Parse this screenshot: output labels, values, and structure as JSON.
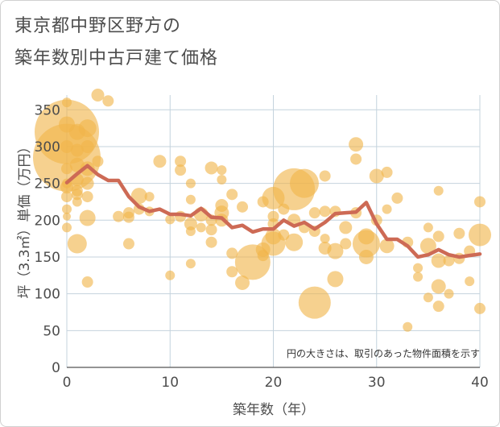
{
  "chart_data": {
    "type": "scatter",
    "title_line1": "東京都中野区野方の",
    "title_line2": "築年数別中古戸建て価格",
    "xlabel": "築年数（年）",
    "ylabel": "坪（3.3㎡）単価（万円）",
    "xlim": [
      0,
      40
    ],
    "ylim": [
      0,
      370
    ],
    "x_ticks": [
      0,
      10,
      20,
      30,
      40
    ],
    "y_ticks": [
      0,
      50,
      100,
      150,
      200,
      250,
      300,
      350
    ],
    "note": "円の大きさは、取引のあった物件面積を示す",
    "colors": {
      "bubble": "#f0b54a",
      "line": "#cd6a55",
      "grid": "#c4d3dd",
      "text": "#4d4d4d"
    },
    "bubbles": [
      [
        0,
        320,
        40
      ],
      [
        0,
        285,
        42
      ],
      [
        0,
        360,
        6
      ],
      [
        0,
        330,
        10
      ],
      [
        0,
        300,
        8
      ],
      [
        0,
        270,
        7
      ],
      [
        0,
        245,
        8
      ],
      [
        0,
        232,
        7
      ],
      [
        0,
        215,
        6
      ],
      [
        0,
        205,
        5
      ],
      [
        0,
        190,
        6
      ],
      [
        0,
        250,
        6
      ],
      [
        1,
        320,
        10
      ],
      [
        1,
        295,
        8
      ],
      [
        1,
        275,
        9
      ],
      [
        1,
        255,
        8
      ],
      [
        1,
        240,
        7
      ],
      [
        1,
        235,
        7
      ],
      [
        1,
        225,
        6
      ],
      [
        1,
        168,
        12
      ],
      [
        2,
        325,
        11
      ],
      [
        2,
        300,
        8
      ],
      [
        2,
        270,
        9
      ],
      [
        2,
        250,
        8
      ],
      [
        2,
        232,
        7
      ],
      [
        2,
        203,
        10
      ],
      [
        2,
        116,
        7
      ],
      [
        3,
        370,
        8
      ],
      [
        3,
        280,
        7
      ],
      [
        4,
        362,
        7
      ],
      [
        5,
        205,
        7
      ],
      [
        6,
        210,
        7
      ],
      [
        6,
        204,
        7
      ],
      [
        6,
        168,
        7
      ],
      [
        7,
        233,
        10
      ],
      [
        7,
        215,
        7
      ],
      [
        8,
        232,
        6
      ],
      [
        8,
        212,
        6
      ],
      [
        9,
        280,
        8
      ],
      [
        10,
        201,
        6
      ],
      [
        10,
        125,
        6
      ],
      [
        11,
        280,
        7
      ],
      [
        11,
        268,
        7
      ],
      [
        11,
        205,
        7
      ],
      [
        12,
        250,
        6
      ],
      [
        12,
        228,
        6
      ],
      [
        12,
        195,
        8
      ],
      [
        12,
        185,
        6
      ],
      [
        12,
        141,
        6
      ],
      [
        13,
        208,
        9
      ],
      [
        13,
        190,
        6
      ],
      [
        14,
        271,
        8
      ],
      [
        14,
        200,
        7
      ],
      [
        14,
        187,
        7
      ],
      [
        14,
        170,
        7
      ],
      [
        15,
        268,
        6
      ],
      [
        15,
        255,
        6
      ],
      [
        15,
        220,
        8
      ],
      [
        15,
        210,
        9
      ],
      [
        15,
        200,
        8
      ],
      [
        16,
        235,
        7
      ],
      [
        16,
        155,
        7
      ],
      [
        16,
        130,
        7
      ],
      [
        17,
        218,
        7
      ],
      [
        17,
        115,
        9
      ],
      [
        18,
        143,
        22
      ],
      [
        19,
        225,
        7
      ],
      [
        19,
        160,
        9
      ],
      [
        19,
        152,
        7
      ],
      [
        20,
        230,
        14
      ],
      [
        20,
        205,
        7
      ],
      [
        20,
        195,
        7
      ],
      [
        20,
        178,
        10
      ],
      [
        20,
        168,
        15
      ],
      [
        21,
        215,
        7
      ],
      [
        21,
        180,
        7
      ],
      [
        22,
        242,
        26
      ],
      [
        22,
        200,
        8
      ],
      [
        22,
        170,
        11
      ],
      [
        23,
        250,
        18
      ],
      [
        23,
        190,
        7
      ],
      [
        24,
        210,
        7
      ],
      [
        24,
        185,
        7
      ],
      [
        24,
        88,
        20
      ],
      [
        25,
        260,
        7
      ],
      [
        25,
        212,
        7
      ],
      [
        25,
        175,
        6
      ],
      [
        25,
        162,
        8
      ],
      [
        26,
        212,
        7
      ],
      [
        26,
        158,
        10
      ],
      [
        26,
        120,
        10
      ],
      [
        27,
        190,
        8
      ],
      [
        27,
        168,
        7
      ],
      [
        28,
        303,
        9
      ],
      [
        28,
        283,
        7
      ],
      [
        28,
        210,
        7
      ],
      [
        29,
        178,
        10
      ],
      [
        29,
        168,
        17
      ],
      [
        29,
        150,
        9
      ],
      [
        30,
        260,
        9
      ],
      [
        30,
        200,
        7
      ],
      [
        31,
        265,
        7
      ],
      [
        31,
        215,
        6
      ],
      [
        31,
        165,
        9
      ],
      [
        32,
        230,
        7
      ],
      [
        33,
        170,
        7
      ],
      [
        33,
        55,
        6
      ],
      [
        34,
        135,
        6
      ],
      [
        34,
        123,
        6
      ],
      [
        35,
        190,
        6
      ],
      [
        35,
        165,
        10
      ],
      [
        35,
        95,
        6
      ],
      [
        36,
        240,
        6
      ],
      [
        36,
        178,
        7
      ],
      [
        36,
        145,
        9
      ],
      [
        36,
        110,
        9
      ],
      [
        36,
        83,
        7
      ],
      [
        37,
        145,
        7
      ],
      [
        37,
        100,
        6
      ],
      [
        38,
        182,
        7
      ],
      [
        38,
        148,
        7
      ],
      [
        39,
        158,
        7
      ],
      [
        39,
        117,
        6
      ],
      [
        40,
        225,
        7
      ],
      [
        40,
        180,
        14
      ],
      [
        40,
        80,
        7
      ]
    ],
    "average_line": {
      "x": [
        0,
        1,
        2,
        3,
        4,
        5,
        6,
        7,
        8,
        9,
        10,
        11,
        12,
        13,
        14,
        15,
        16,
        17,
        18,
        19,
        20,
        21,
        22,
        23,
        24,
        25,
        26,
        27,
        28,
        29,
        30,
        31,
        32,
        33,
        34,
        35,
        36,
        37,
        38,
        39,
        40
      ],
      "y": [
        251,
        263,
        274,
        262,
        254,
        254,
        232,
        218,
        212,
        215,
        208,
        208,
        206,
        216,
        204,
        203,
        190,
        193,
        184,
        188,
        188,
        200,
        192,
        197,
        188,
        197,
        209,
        210,
        211,
        224,
        195,
        174,
        174,
        165,
        150,
        153,
        160,
        153,
        150,
        152,
        154
      ]
    }
  }
}
